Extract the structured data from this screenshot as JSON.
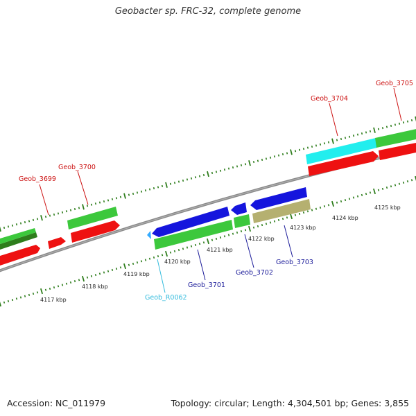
{
  "title": "Geobacter sp. FRC-32, complete genome",
  "footer": {
    "accession": "Accession: NC_011979",
    "stats": "Topology: circular; Length: 4,304,501 bp; Genes: 3,855"
  },
  "colors": {
    "background": "#ffffff",
    "backbone": "#808080",
    "tick": "#2e7d1c",
    "gene_green": "#3cc83c",
    "gene_red": "#ee1111",
    "gene_blue": "#1515dd",
    "gene_cyan": "#22eeee",
    "gene_khaki": "#b5b070",
    "label_red": "#cc1111",
    "label_blue": "#1a1a99",
    "label_cyan": "#33bbdd"
  },
  "scale_labels": [
    {
      "text": "4117 kbp",
      "kbp": 4117
    },
    {
      "text": "4118 kbp",
      "kbp": 4118
    },
    {
      "text": "4119 kbp",
      "kbp": 4119
    },
    {
      "text": "4120 kbp",
      "kbp": 4120
    },
    {
      "text": "4121 kbp",
      "kbp": 4121
    },
    {
      "text": "4122 kbp",
      "kbp": 4122
    },
    {
      "text": "4123 kbp",
      "kbp": 4123
    },
    {
      "text": "4124 kbp",
      "kbp": 4124
    },
    {
      "text": "4125 kbp",
      "kbp": 4125
    }
  ],
  "genes": [
    {
      "name": "Geob_3699",
      "color": "red",
      "label_color": "red"
    },
    {
      "name": "Geob_3700",
      "color": "red",
      "label_color": "red"
    },
    {
      "name": "Geob_R0062",
      "color": "cyan",
      "label_color": "cyan"
    },
    {
      "name": "Geob_3701",
      "color": "blue",
      "label_color": "blue"
    },
    {
      "name": "Geob_3702",
      "color": "blue",
      "label_color": "blue"
    },
    {
      "name": "Geob_3703",
      "color": "blue",
      "label_color": "blue"
    },
    {
      "name": "Geob_3704",
      "color": "cyan",
      "label_color": "red"
    },
    {
      "name": "Geob_3705",
      "color": "red",
      "label_color": "red"
    }
  ]
}
